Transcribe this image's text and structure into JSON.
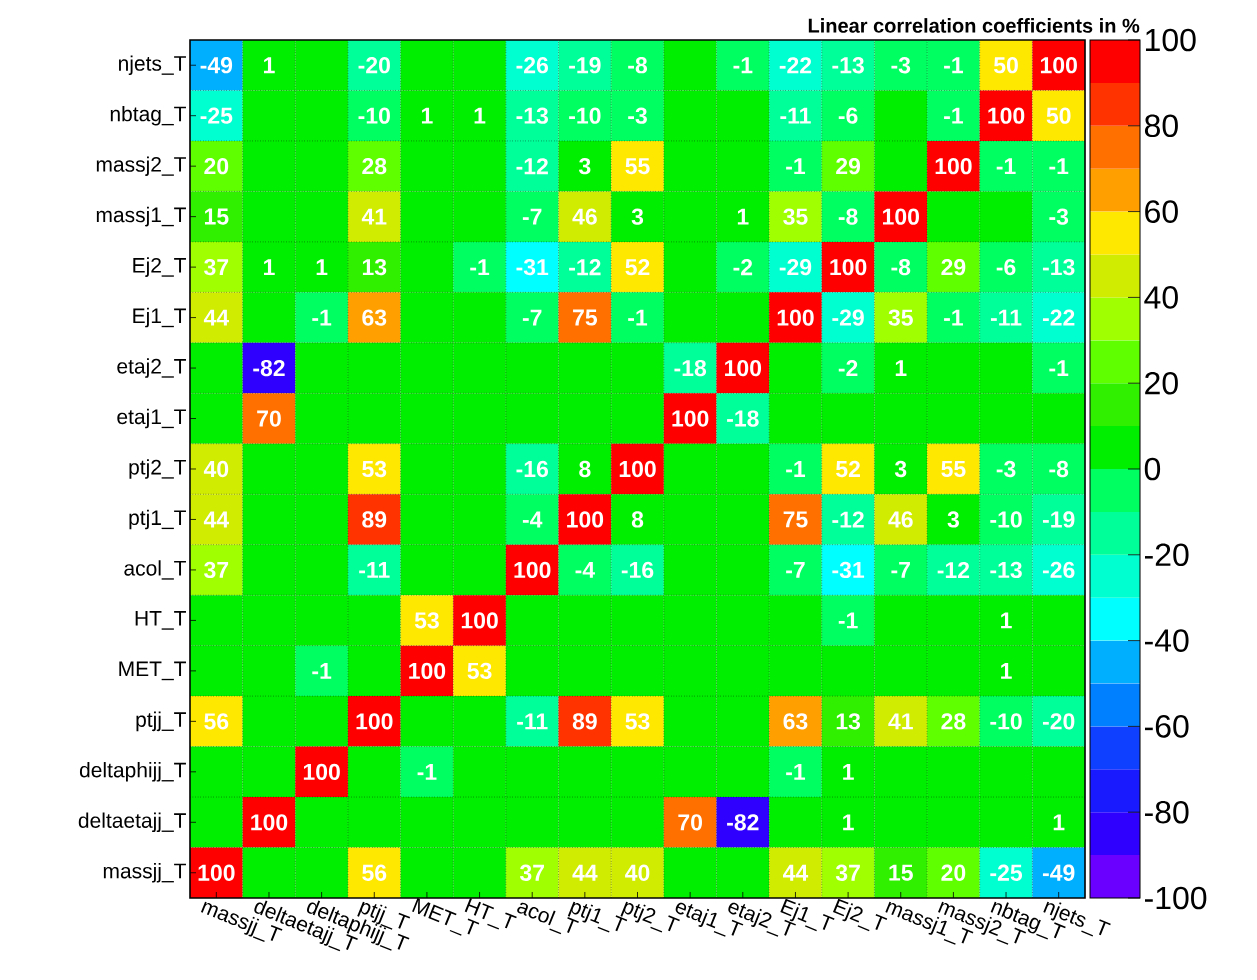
{
  "chart_data": {
    "type": "heatmap",
    "title": "Linear correlation coefficients in %",
    "categories": [
      "massjj_T",
      "deltaetajj_T",
      "deltaphijj_T",
      "ptjj_T",
      "MET_T",
      "HT_T",
      "acol_T",
      "ptj1_T",
      "ptj2_T",
      "etaj1_T",
      "etaj2_T",
      "Ej1_T",
      "Ej2_T",
      "massj1_T",
      "massj2_T",
      "nbtag_T",
      "njets_T"
    ],
    "y_categories": [
      "njets_T",
      "nbtag_T",
      "massj2_T",
      "massj1_T",
      "Ej2_T",
      "Ej1_T",
      "etaj2_T",
      "etaj1_T",
      "ptj2_T",
      "ptj1_T",
      "acol_T",
      "HT_T",
      "MET_T",
      "ptjj_T",
      "deltaphijj_T",
      "deltaetajj_T",
      "massjj_T"
    ],
    "cells": [
      [
        -49,
        1,
        0,
        -20,
        0,
        0,
        -26,
        -19,
        -8,
        0,
        -1,
        -22,
        -13,
        -3,
        -1,
        50,
        100
      ],
      [
        -25,
        0,
        0,
        -10,
        1,
        1,
        -13,
        -10,
        -3,
        0,
        0,
        -11,
        -6,
        0,
        -1,
        100,
        50
      ],
      [
        20,
        0,
        0,
        28,
        0,
        0,
        -12,
        3,
        55,
        0,
        0,
        -1,
        29,
        0,
        100,
        -1,
        -1
      ],
      [
        15,
        0,
        0,
        41,
        0,
        0,
        -7,
        46,
        3,
        0,
        1,
        35,
        -8,
        100,
        0,
        0,
        -3
      ],
      [
        37,
        1,
        1,
        13,
        0,
        -1,
        -31,
        -12,
        52,
        0,
        -2,
        -29,
        100,
        -8,
        29,
        -6,
        -13
      ],
      [
        44,
        0,
        -1,
        63,
        0,
        0,
        -7,
        75,
        -1,
        0,
        0,
        100,
        -29,
        35,
        -1,
        -11,
        -22
      ],
      [
        0,
        -82,
        0,
        0,
        0,
        0,
        0,
        0,
        0,
        -18,
        100,
        0,
        -2,
        1,
        0,
        0,
        -1
      ],
      [
        0,
        70,
        0,
        0,
        0,
        0,
        0,
        0,
        0,
        100,
        -18,
        0,
        0,
        0,
        0,
        0,
        0
      ],
      [
        40,
        0,
        0,
        53,
        0,
        0,
        -16,
        8,
        100,
        0,
        0,
        -1,
        52,
        3,
        55,
        -3,
        -8
      ],
      [
        44,
        0,
        0,
        89,
        0,
        0,
        -4,
        100,
        8,
        0,
        0,
        75,
        -12,
        46,
        3,
        -10,
        -19
      ],
      [
        37,
        0,
        0,
        -11,
        0,
        0,
        100,
        -4,
        -16,
        0,
        0,
        -7,
        -31,
        -7,
        -12,
        -13,
        -26
      ],
      [
        0,
        0,
        0,
        0,
        53,
        100,
        0,
        0,
        0,
        0,
        0,
        0,
        -1,
        0,
        0,
        1,
        0
      ],
      [
        0,
        0,
        -1,
        0,
        100,
        53,
        0,
        0,
        0,
        0,
        0,
        0,
        0,
        0,
        0,
        1,
        0
      ],
      [
        56,
        0,
        0,
        100,
        0,
        0,
        -11,
        89,
        53,
        0,
        0,
        63,
        13,
        41,
        28,
        -10,
        -20
      ],
      [
        0,
        0,
        100,
        0,
        -1,
        0,
        0,
        0,
        0,
        0,
        0,
        -1,
        1,
        0,
        0,
        0,
        0
      ],
      [
        0,
        100,
        0,
        0,
        0,
        0,
        0,
        0,
        0,
        70,
        -82,
        0,
        1,
        0,
        0,
        0,
        1
      ],
      [
        100,
        0,
        0,
        56,
        0,
        0,
        37,
        44,
        40,
        0,
        0,
        44,
        37,
        15,
        20,
        -25,
        -49
      ]
    ],
    "cell_labels": [
      [
        "-49",
        "1",
        null,
        "-20",
        null,
        null,
        "-26",
        "-19",
        "-8",
        null,
        "-1",
        "-22",
        "-13",
        "-3",
        "-1",
        "50",
        "100"
      ],
      [
        "-25",
        null,
        null,
        "-10",
        "1",
        "1",
        "-13",
        "-10",
        "-3",
        null,
        null,
        "-11",
        "-6",
        null,
        "-1",
        "100",
        "50"
      ],
      [
        "20",
        null,
        null,
        "28",
        null,
        null,
        "-12",
        "3",
        "55",
        null,
        null,
        "-1",
        "29",
        null,
        "100",
        "-1",
        "-1"
      ],
      [
        "15",
        null,
        null,
        "41",
        null,
        null,
        "-7",
        "46",
        "3",
        null,
        "1",
        "35",
        "-8",
        "100",
        null,
        null,
        "-3"
      ],
      [
        "37",
        "1",
        "1",
        "13",
        null,
        "-1",
        "-31",
        "-12",
        "52",
        null,
        "-2",
        "-29",
        "100",
        "-8",
        "29",
        "-6",
        "-13"
      ],
      [
        "44",
        null,
        "-1",
        "63",
        null,
        null,
        "-7",
        "75",
        "-1",
        null,
        null,
        "100",
        "-29",
        "35",
        "-1",
        "-11",
        "-22"
      ],
      [
        null,
        "-82",
        null,
        null,
        null,
        null,
        null,
        null,
        null,
        "-18",
        "100",
        null,
        "-2",
        "1",
        null,
        null,
        "-1"
      ],
      [
        null,
        "70",
        null,
        null,
        null,
        null,
        null,
        null,
        null,
        "100",
        "-18",
        null,
        null,
        null,
        null,
        null,
        null
      ],
      [
        "40",
        null,
        null,
        "53",
        null,
        null,
        "-16",
        "8",
        "100",
        null,
        null,
        "-1",
        "52",
        "3",
        "55",
        "-3",
        "-8"
      ],
      [
        "44",
        null,
        null,
        "89",
        null,
        null,
        "-4",
        "100",
        "8",
        null,
        null,
        "75",
        "-12",
        "46",
        "3",
        "-10",
        "-19"
      ],
      [
        "37",
        null,
        null,
        "-11",
        null,
        null,
        "100",
        "-4",
        "-16",
        null,
        null,
        "-7",
        "-31",
        "-7",
        "-12",
        "-13",
        "-26"
      ],
      [
        null,
        null,
        null,
        null,
        "53",
        "100",
        null,
        null,
        null,
        null,
        null,
        null,
        "-1",
        null,
        null,
        "1",
        null
      ],
      [
        null,
        null,
        "-1",
        null,
        "100",
        "53",
        null,
        null,
        null,
        null,
        null,
        null,
        null,
        null,
        null,
        "1",
        null
      ],
      [
        "56",
        null,
        null,
        "100",
        null,
        null,
        "-11",
        "89",
        "53",
        null,
        null,
        "63",
        "13",
        "41",
        "28",
        "-10",
        "-20"
      ],
      [
        null,
        null,
        "100",
        null,
        "-1",
        null,
        null,
        null,
        null,
        null,
        null,
        "-1",
        "1",
        null,
        null,
        null,
        null
      ],
      [
        null,
        "100",
        null,
        null,
        null,
        null,
        null,
        null,
        null,
        "70",
        "-82",
        null,
        "1",
        null,
        null,
        null,
        "1"
      ],
      [
        "100",
        null,
        null,
        "56",
        null,
        null,
        "37",
        "44",
        "40",
        null,
        null,
        "44",
        "37",
        "15",
        "20",
        "-25",
        "-49"
      ]
    ],
    "clim": [
      -100,
      100
    ],
    "cticks": [
      -100,
      -80,
      -60,
      -40,
      -20,
      0,
      20,
      40,
      60,
      80,
      100
    ],
    "grid": true
  }
}
